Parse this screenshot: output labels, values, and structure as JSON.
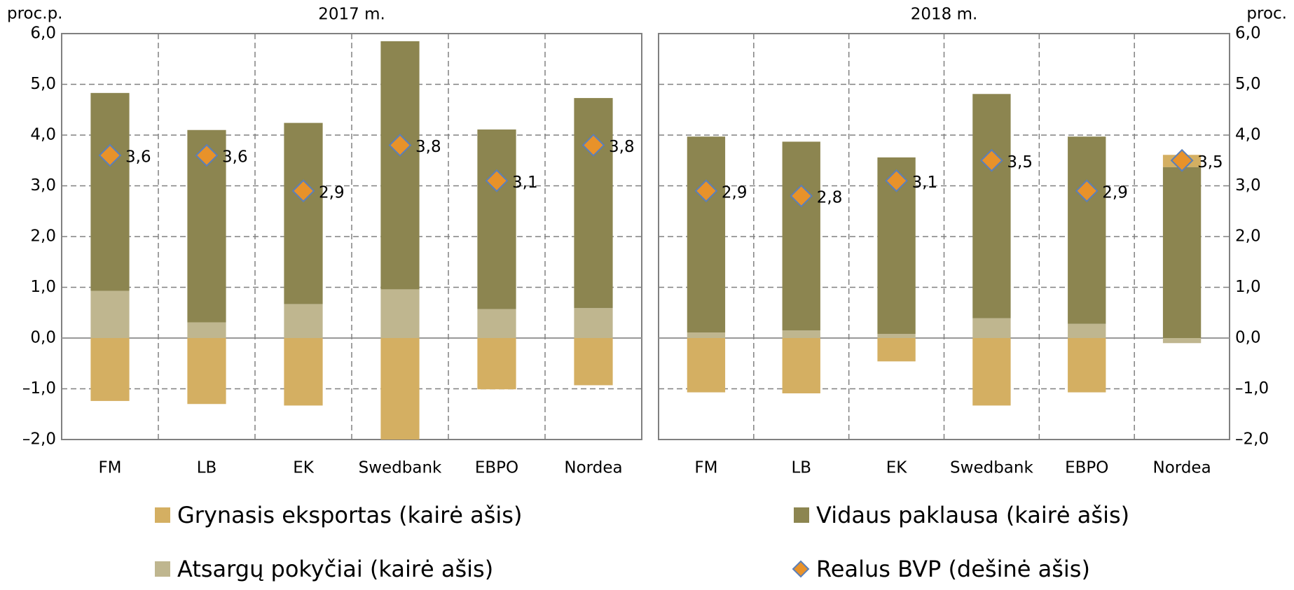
{
  "chart_data": [
    {
      "type": "bar",
      "title": "2017 m.",
      "ylabel": "proc.p.",
      "categories": [
        "FM",
        "LB",
        "EK",
        "Swedbank",
        "EBPO",
        "Nordea"
      ],
      "ylim": [
        -2,
        6
      ],
      "yticks": [
        {
          "value": 6,
          "label": "6,0"
        },
        {
          "value": 5,
          "label": "5,0"
        },
        {
          "value": 4,
          "label": "4,0"
        },
        {
          "value": 3,
          "label": "3,0"
        },
        {
          "value": 2,
          "label": "2,0"
        },
        {
          "value": 1,
          "label": "1,0"
        },
        {
          "value": 0,
          "label": "0,0"
        },
        {
          "value": -1,
          "label": "–1,0"
        },
        {
          "value": -2,
          "label": "–2,0"
        }
      ],
      "grid": true,
      "series": [
        {
          "name": "Grynasis eksportas (kairė ašis)",
          "color": "#d4af62",
          "values": [
            -1.24,
            -1.3,
            -1.33,
            -2.0,
            -1.01,
            -0.93
          ]
        },
        {
          "name": "Atsargų pokyčiai (kairė ašis)",
          "color": "#bfb68f",
          "values": [
            0.93,
            0.31,
            0.67,
            0.96,
            0.57,
            0.59
          ]
        },
        {
          "name": "Vidaus paklausa (kairė ašis)",
          "color": "#8c8550",
          "values": [
            3.9,
            3.79,
            3.57,
            4.89,
            3.54,
            4.14
          ]
        },
        {
          "name": "Realus BVP (dešinė ašis)",
          "color": "#e8922a",
          "marker": "diamond",
          "values": [
            3.6,
            3.6,
            2.9,
            3.8,
            3.1,
            3.8
          ],
          "value_labels": [
            "3,6",
            "3,6",
            "2,9",
            "3,8",
            "3,1",
            "3,8"
          ]
        }
      ]
    },
    {
      "type": "bar",
      "title": "2018 m.",
      "y2label": "proc.",
      "categories": [
        "FM",
        "LB",
        "EK",
        "Swedbank",
        "EBPO",
        "Nordea"
      ],
      "ylim": [
        -2,
        6
      ],
      "y2lim": [
        -2,
        6
      ],
      "y2ticks": [
        {
          "value": 6,
          "label": "6,0"
        },
        {
          "value": 5,
          "label": "5,0"
        },
        {
          "value": 4,
          "label": "4,0"
        },
        {
          "value": 3,
          "label": "3,0"
        },
        {
          "value": 2,
          "label": "2,0"
        },
        {
          "value": 1,
          "label": "1,0"
        },
        {
          "value": 0,
          "label": "0,0"
        },
        {
          "value": -1,
          "label": "–1,0"
        },
        {
          "value": -2,
          "label": "–2,0"
        }
      ],
      "grid": true,
      "series": [
        {
          "name": "Grynasis eksportas (kairė ašis)",
          "color": "#d4af62",
          "values": [
            -1.07,
            -1.09,
            -0.46,
            -1.33,
            -1.07,
            0.24
          ]
        },
        {
          "name": "Atsargų pokyčiai (kairė ašis)",
          "color": "#bfb68f",
          "values": [
            0.11,
            0.15,
            0.08,
            0.39,
            0.28,
            -0.1
          ]
        },
        {
          "name": "Vidaus paklausa (kairė ašis)",
          "color": "#8c8550",
          "values": [
            3.86,
            3.72,
            3.48,
            4.42,
            3.69,
            3.37
          ]
        },
        {
          "name": "Realus BVP (dešinė ašis)",
          "color": "#e8922a",
          "marker": "diamond",
          "axis": "y2",
          "values": [
            2.9,
            2.8,
            3.1,
            3.5,
            2.9,
            3.5
          ],
          "value_labels": [
            "2,9",
            "2,8",
            "3,1",
            "3,5",
            "2,9",
            "3,5"
          ]
        }
      ]
    }
  ]
}
